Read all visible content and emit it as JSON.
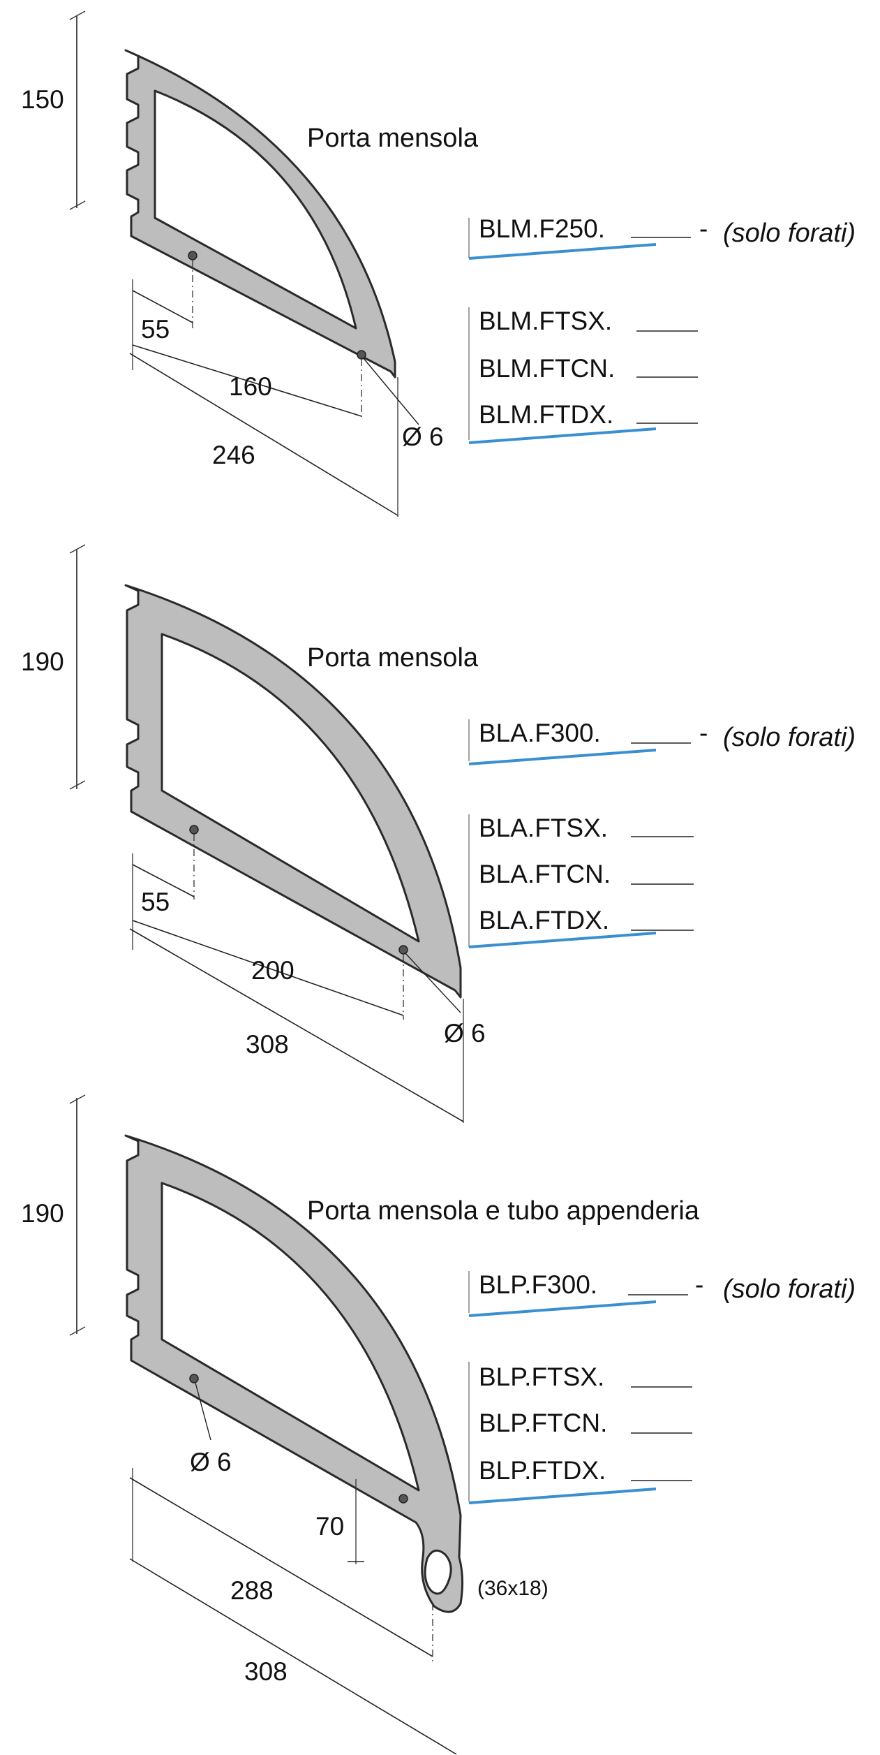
{
  "groups": [
    {
      "title": "Porta mensola",
      "height": "150",
      "dim_hole_offset": "55",
      "dim_hole_spacing": "160",
      "dim_depth": "246",
      "hole_label": "Ø 6",
      "code_main": "BLM.F250.",
      "note_dash": "-",
      "note": "(solo forati)",
      "codes": [
        "BLM.FTSX.",
        "BLM.FTCN.",
        "BLM.FTDX."
      ]
    },
    {
      "title": "Porta mensola",
      "height": "190",
      "dim_hole_offset": "55",
      "dim_hole_spacing": "200",
      "dim_depth": "308",
      "hole_label": "Ø 6",
      "code_main": "BLA.F300.",
      "note_dash": "-",
      "note": "(solo forati)",
      "codes": [
        "BLA.FTSX.",
        "BLA.FTCN.",
        "BLA.FTDX."
      ]
    },
    {
      "title": "Porta mensola e tubo appenderia",
      "height": "190",
      "hole_label": "Ø 6",
      "dim_tube_height": "70",
      "dim_tube_pos": "288",
      "dim_depth": "308",
      "slot_size": "(36x18)",
      "code_main": "BLP.F300.",
      "note_dash": "-",
      "note": "(solo forati)",
      "codes": [
        "BLP.FTSX.",
        "BLP.FTCN.",
        "BLP.FTDX."
      ]
    }
  ]
}
